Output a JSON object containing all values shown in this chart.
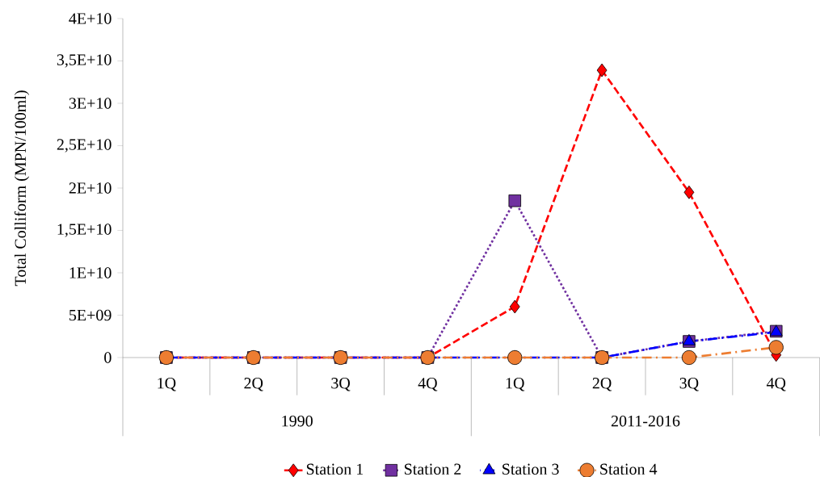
{
  "chart_data": {
    "type": "line",
    "ylabel": "Total Colliform (MPN/100ml)",
    "categories": [
      "1Q",
      "2Q",
      "3Q",
      "4Q",
      "1Q",
      "2Q",
      "3Q",
      "4Q"
    ],
    "annotations": [
      "1990",
      "2011-2016"
    ],
    "ylim": [
      0,
      40000000000
    ],
    "yticks": [
      0,
      {
        "value": 5000000000,
        "label": "5E+09"
      },
      {
        "value": 10000000000,
        "label": "1E+10"
      },
      {
        "value": 15000000000,
        "label": "1,5E+10"
      },
      {
        "value": 20000000000,
        "label": "2E+10"
      },
      {
        "value": 25000000000,
        "label": "2,5E+10"
      },
      {
        "value": 30000000000,
        "label": "3E+10"
      },
      {
        "value": 35000000000,
        "label": "3,5E+10"
      },
      {
        "value": 40000000000,
        "label": "4E+10"
      }
    ],
    "grid": false,
    "legend": "bottom",
    "series": [
      {
        "name": "Station 1",
        "color": "#ff0000",
        "marker": "diamond",
        "line_style": "dashed",
        "values": [
          0,
          0,
          0,
          0,
          6000000000,
          33900000000,
          19500000000,
          300000000
        ]
      },
      {
        "name": "Station 2",
        "color": "#7030a0",
        "marker": "square",
        "line_style": "dotted",
        "values": [
          0,
          0,
          0,
          0,
          18500000000,
          0,
          1900000000,
          3100000000
        ]
      },
      {
        "name": "Station 3",
        "color": "#0000ff",
        "marker": "triangle",
        "line_style": "dashdot",
        "values": [
          0,
          0,
          0,
          0,
          0,
          0,
          1900000000,
          3000000000
        ]
      },
      {
        "name": "Station 4",
        "color": "#ed7d31",
        "marker": "circle",
        "line_style": "dashdot",
        "values": [
          0,
          0,
          0,
          0,
          0,
          0,
          0,
          1200000000
        ]
      }
    ]
  }
}
